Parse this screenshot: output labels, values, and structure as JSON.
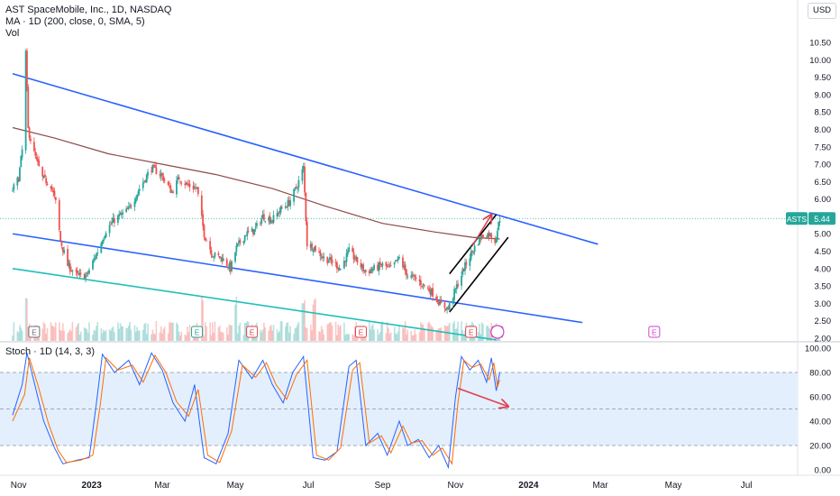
{
  "header": {
    "title": "AST SpaceMobile, Inc., 1D, NASDAQ",
    "ma_label": "MA · 1D (200, close, 0, SMA, 5)",
    "vol_label": "Vol",
    "stoch_label": "Stoch · 1D (14, 3, 3)"
  },
  "currency": "USD",
  "price_tag": {
    "symbol": "ASTS",
    "value": "5.44"
  },
  "colors": {
    "candle_up": "#26a69a",
    "candle_down": "#ef5350",
    "ma_line": "#8d4a4a",
    "channel_line": "#2962ff",
    "support_line": "#1fbfb8",
    "stoch_k": "#2962ff",
    "stoch_d": "#ff6d00",
    "stoch_band": "#e3effd",
    "arrow": "#e0424f"
  },
  "earnings_markers": [
    "E",
    "E",
    "E",
    "E",
    "E",
    "E",
    "E"
  ],
  "chart_data": [
    {
      "type": "candlestick",
      "title": "AST SpaceMobile, Inc., 1D, NASDAQ",
      "y_ticks": [
        "10.50",
        "10.00",
        "9.50",
        "9.00",
        "8.50",
        "8.00",
        "7.50",
        "7.00",
        "6.50",
        "6.00",
        "5.50",
        "5.00",
        "4.50",
        "4.00",
        "3.50",
        "3.00",
        "2.50",
        "2.00"
      ],
      "ylim": [
        2.0,
        10.5
      ],
      "x_ticks": [
        "Nov",
        "2023",
        "Mar",
        "May",
        "Jul",
        "Sep",
        "Nov",
        "2024",
        "Mar",
        "May",
        "Jul"
      ],
      "x_range": [
        "2022-10-27",
        "2024-07-25"
      ],
      "last_price": 5.44,
      "price_path": [
        [
          "2022-10-26",
          6.2
        ],
        [
          "2022-11-01",
          6.6
        ],
        [
          "2022-11-04",
          7.4
        ],
        [
          "2022-11-07",
          10.2
        ],
        [
          "2022-11-09",
          8.0
        ],
        [
          "2022-11-14",
          7.3
        ],
        [
          "2022-11-21",
          6.6
        ],
        [
          "2022-11-28",
          6.4
        ],
        [
          "2022-12-02",
          5.9
        ],
        [
          "2022-12-06",
          4.8
        ],
        [
          "2022-12-12",
          4.1
        ],
        [
          "2022-12-20",
          3.8
        ],
        [
          "2022-12-28",
          3.8
        ],
        [
          "2023-01-06",
          4.5
        ],
        [
          "2023-01-13",
          5.1
        ],
        [
          "2023-01-20",
          5.4
        ],
        [
          "2023-02-01",
          5.7
        ],
        [
          "2023-02-10",
          6.3
        ],
        [
          "2023-02-20",
          6.9
        ],
        [
          "2023-02-28",
          6.7
        ],
        [
          "2023-03-09",
          6.2
        ],
        [
          "2023-03-15",
          6.6
        ],
        [
          "2023-03-22",
          6.4
        ],
        [
          "2023-03-30",
          6.3
        ],
        [
          "2023-04-05",
          5.0
        ],
        [
          "2023-04-12",
          4.4
        ],
        [
          "2023-04-20",
          4.3
        ],
        [
          "2023-04-27",
          4.0
        ],
        [
          "2023-05-02",
          4.6
        ],
        [
          "2023-05-10",
          5.0
        ],
        [
          "2023-05-17",
          5.1
        ],
        [
          "2023-05-24",
          5.5
        ],
        [
          "2023-06-01",
          5.4
        ],
        [
          "2023-06-08",
          5.7
        ],
        [
          "2023-06-15",
          5.9
        ],
        [
          "2023-06-22",
          6.4
        ],
        [
          "2023-06-27",
          6.9
        ],
        [
          "2023-06-30",
          4.7
        ],
        [
          "2023-07-06",
          4.6
        ],
        [
          "2023-07-14",
          4.3
        ],
        [
          "2023-07-21",
          4.2
        ],
        [
          "2023-07-28",
          4.0
        ],
        [
          "2023-08-04",
          4.5
        ],
        [
          "2023-08-11",
          4.2
        ],
        [
          "2023-08-18",
          3.9
        ],
        [
          "2023-08-25",
          4.0
        ],
        [
          "2023-09-01",
          4.1
        ],
        [
          "2023-09-08",
          4.0
        ],
        [
          "2023-09-15",
          4.3
        ],
        [
          "2023-09-22",
          3.8
        ],
        [
          "2023-09-29",
          3.7
        ],
        [
          "2023-10-06",
          3.5
        ],
        [
          "2023-10-13",
          3.3
        ],
        [
          "2023-10-20",
          2.95
        ],
        [
          "2023-10-26",
          2.85
        ],
        [
          "2023-11-01",
          3.4
        ],
        [
          "2023-11-08",
          4.0
        ],
        [
          "2023-11-15",
          4.5
        ],
        [
          "2023-11-22",
          4.9
        ],
        [
          "2023-11-29",
          5.0
        ],
        [
          "2023-12-04",
          4.8
        ],
        [
          "2023-12-08",
          5.44
        ]
      ],
      "moving_average_200": [
        [
          "2022-10-27",
          8.05
        ],
        [
          "2022-12-01",
          7.75
        ],
        [
          "2023-01-15",
          7.3
        ],
        [
          "2023-03-01",
          7.0
        ],
        [
          "2023-04-15",
          6.7
        ],
        [
          "2023-06-01",
          6.3
        ],
        [
          "2023-07-15",
          5.8
        ],
        [
          "2023-09-01",
          5.3
        ],
        [
          "2023-10-15",
          5.05
        ],
        [
          "2023-11-15",
          4.9
        ],
        [
          "2023-12-08",
          4.85
        ]
      ],
      "volume_peak_dates": [
        "2022-11-07",
        "2023-06-27",
        "2023-05-01",
        "2023-07-06",
        "2023-04-03"
      ],
      "trendlines": [
        {
          "from": [
            "2022-10-27",
            9.6
          ],
          "to": [
            "2024-02-28",
            4.7
          ]
        },
        {
          "from": [
            "2022-10-27",
            5.0
          ],
          "to": [
            "2024-02-15",
            2.45
          ]
        },
        {
          "from": [
            "2022-10-27",
            4.0
          ],
          "to": [
            "2023-12-05",
            1.95
          ]
        },
        {
          "from": [
            "2023-10-27",
            2.75
          ],
          "to": [
            "2023-12-15",
            4.9
          ]
        },
        {
          "from": [
            "2023-10-27",
            3.85
          ],
          "to": [
            "2023-12-05",
            5.55
          ]
        },
        {
          "from": [
            "2023-11-15",
            4.65
          ],
          "to": [
            "2023-12-01",
            5.55
          ],
          "arrow": true
        }
      ]
    },
    {
      "type": "line",
      "title": "Stoch · 1D (14, 3, 3)",
      "y_ticks": [
        "100.00",
        "80.00",
        "60.00",
        "40.00",
        "20.00",
        "0.00"
      ],
      "ylim": [
        0,
        100
      ],
      "band": [
        20,
        80
      ],
      "series": [
        {
          "name": "%K",
          "points": [
            [
              "2022-10-27",
              45
            ],
            [
              "2022-11-04",
              70
            ],
            [
              "2022-11-08",
              96
            ],
            [
              "2022-11-14",
              72
            ],
            [
              "2022-11-22",
              40
            ],
            [
              "2022-12-01",
              18
            ],
            [
              "2022-12-08",
              5
            ],
            [
              "2022-12-20",
              8
            ],
            [
              "2022-12-30",
              10
            ],
            [
              "2023-01-05",
              55
            ],
            [
              "2023-01-10",
              95
            ],
            [
              "2023-01-20",
              80
            ],
            [
              "2023-02-01",
              90
            ],
            [
              "2023-02-10",
              70
            ],
            [
              "2023-02-20",
              96
            ],
            [
              "2023-03-01",
              82
            ],
            [
              "2023-03-10",
              55
            ],
            [
              "2023-03-20",
              40
            ],
            [
              "2023-03-28",
              70
            ],
            [
              "2023-04-05",
              10
            ],
            [
              "2023-04-15",
              5
            ],
            [
              "2023-04-25",
              30
            ],
            [
              "2023-05-04",
              90
            ],
            [
              "2023-05-15",
              75
            ],
            [
              "2023-05-24",
              90
            ],
            [
              "2023-06-01",
              70
            ],
            [
              "2023-06-10",
              55
            ],
            [
              "2023-06-18",
              80
            ],
            [
              "2023-06-27",
              93
            ],
            [
              "2023-07-05",
              10
            ],
            [
              "2023-07-15",
              8
            ],
            [
              "2023-07-25",
              15
            ],
            [
              "2023-08-04",
              85
            ],
            [
              "2023-08-10",
              90
            ],
            [
              "2023-08-18",
              20
            ],
            [
              "2023-08-28",
              30
            ],
            [
              "2023-09-05",
              12
            ],
            [
              "2023-09-15",
              40
            ],
            [
              "2023-09-22",
              20
            ],
            [
              "2023-10-01",
              25
            ],
            [
              "2023-10-10",
              10
            ],
            [
              "2023-10-18",
              20
            ],
            [
              "2023-10-26",
              2
            ],
            [
              "2023-11-01",
              60
            ],
            [
              "2023-11-06",
              93
            ],
            [
              "2023-11-13",
              82
            ],
            [
              "2023-11-20",
              90
            ],
            [
              "2023-11-27",
              72
            ],
            [
              "2023-12-01",
              92
            ],
            [
              "2023-12-05",
              65
            ],
            [
              "2023-12-08",
              80
            ]
          ]
        },
        {
          "name": "%D",
          "points": [
            [
              "2022-10-27",
              40
            ],
            [
              "2022-11-06",
              62
            ],
            [
              "2022-11-10",
              92
            ],
            [
              "2022-11-17",
              70
            ],
            [
              "2022-11-26",
              38
            ],
            [
              "2022-12-04",
              16
            ],
            [
              "2022-12-11",
              6
            ],
            [
              "2022-12-23",
              8
            ],
            [
              "2023-01-02",
              12
            ],
            [
              "2023-01-08",
              52
            ],
            [
              "2023-01-13",
              92
            ],
            [
              "2023-01-23",
              82
            ],
            [
              "2023-02-04",
              86
            ],
            [
              "2023-02-13",
              72
            ],
            [
              "2023-02-23",
              94
            ],
            [
              "2023-03-04",
              80
            ],
            [
              "2023-03-13",
              56
            ],
            [
              "2023-03-23",
              44
            ],
            [
              "2023-03-31",
              66
            ],
            [
              "2023-04-08",
              12
            ],
            [
              "2023-04-18",
              6
            ],
            [
              "2023-04-28",
              32
            ],
            [
              "2023-05-07",
              86
            ],
            [
              "2023-05-18",
              76
            ],
            [
              "2023-05-27",
              88
            ],
            [
              "2023-06-04",
              70
            ],
            [
              "2023-06-13",
              58
            ],
            [
              "2023-06-21",
              78
            ],
            [
              "2023-06-30",
              90
            ],
            [
              "2023-07-08",
              12
            ],
            [
              "2023-07-18",
              8
            ],
            [
              "2023-07-28",
              18
            ],
            [
              "2023-08-07",
              82
            ],
            [
              "2023-08-13",
              88
            ],
            [
              "2023-08-21",
              22
            ],
            [
              "2023-08-31",
              28
            ],
            [
              "2023-09-08",
              14
            ],
            [
              "2023-09-18",
              36
            ],
            [
              "2023-09-25",
              22
            ],
            [
              "2023-10-04",
              24
            ],
            [
              "2023-10-13",
              12
            ],
            [
              "2023-10-21",
              18
            ],
            [
              "2023-10-29",
              5
            ],
            [
              "2023-11-03",
              55
            ],
            [
              "2023-11-08",
              90
            ],
            [
              "2023-11-15",
              84
            ],
            [
              "2023-11-22",
              87
            ],
            [
              "2023-11-29",
              74
            ],
            [
              "2023-12-03",
              88
            ],
            [
              "2023-12-06",
              68
            ],
            [
              "2023-12-08",
              74
            ]
          ]
        }
      ],
      "trendlines": [
        {
          "from": [
            "2023-11-03",
            67
          ],
          "to": [
            "2023-12-15",
            52
          ],
          "arrow": true
        }
      ]
    }
  ]
}
